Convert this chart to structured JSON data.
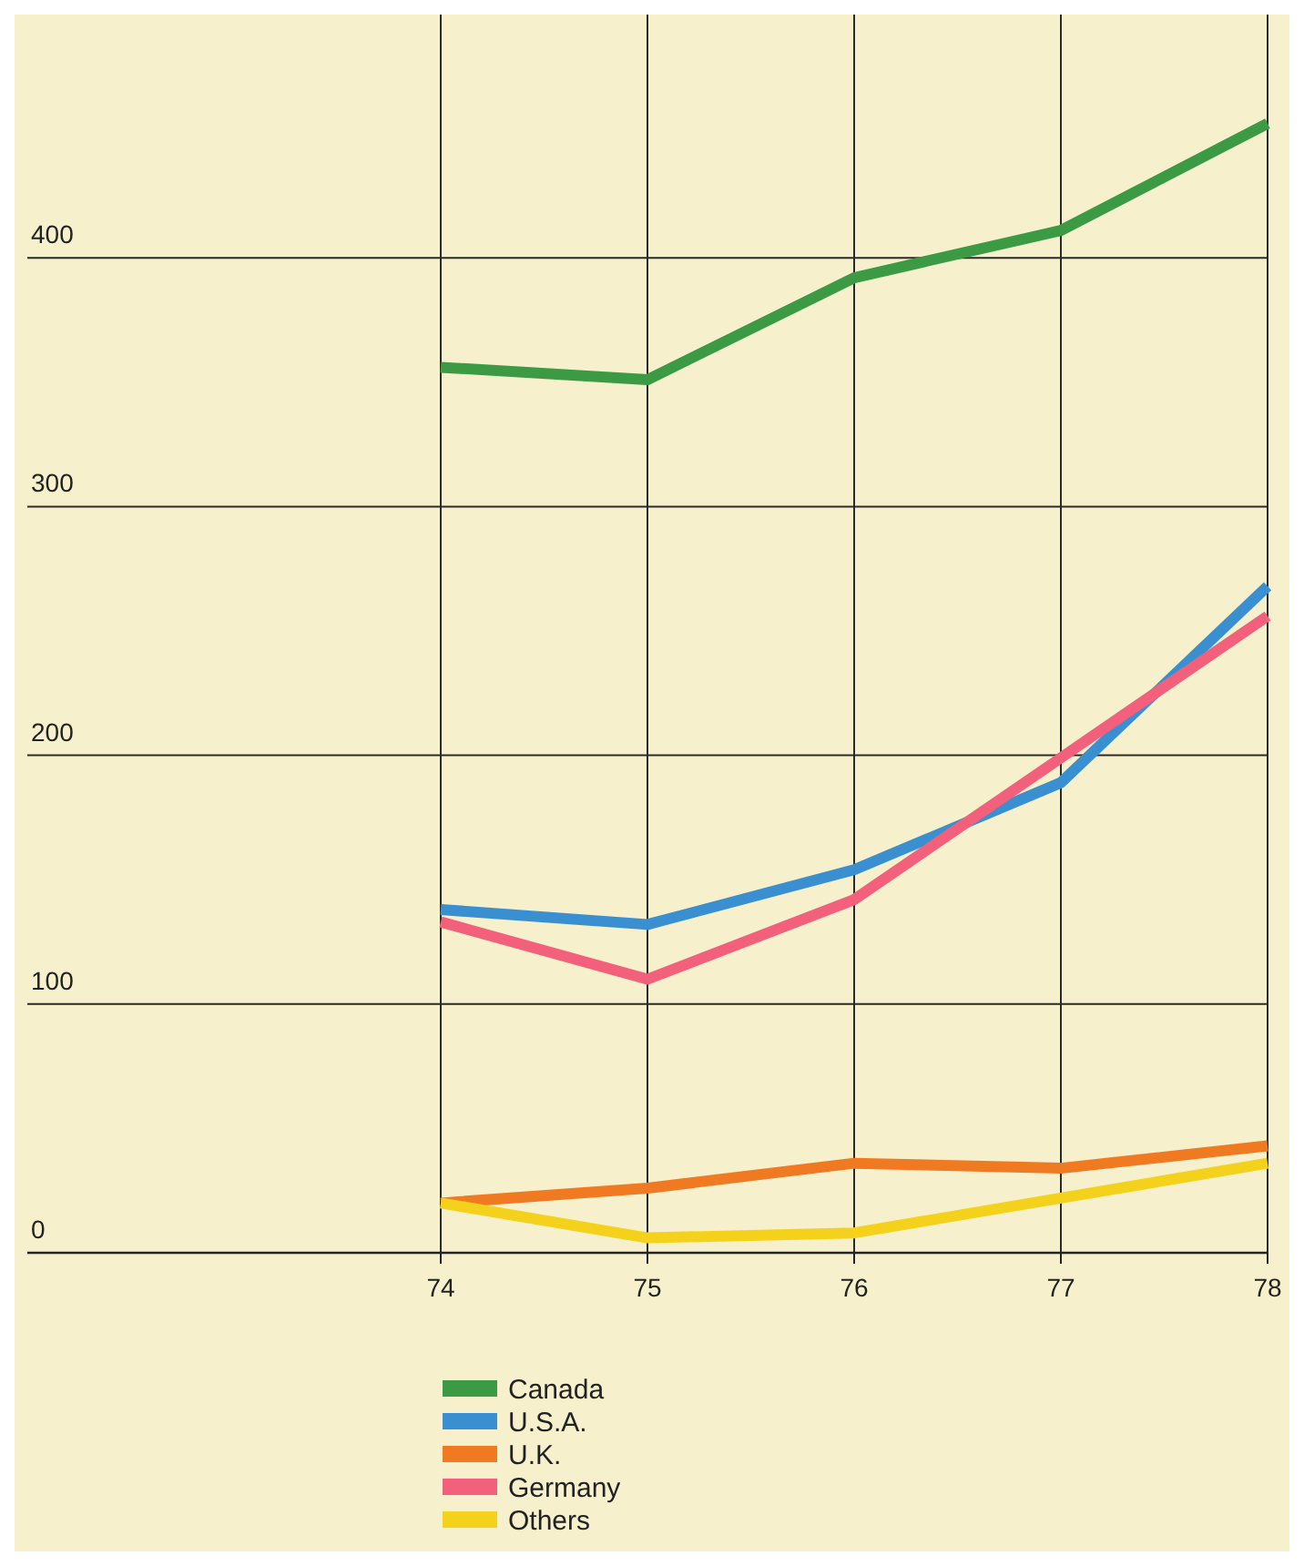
{
  "chart_data": {
    "type": "line",
    "x": [
      74,
      75,
      76,
      77,
      78
    ],
    "xlim": [
      72,
      78
    ],
    "xticks": [
      74,
      75,
      76,
      77,
      78
    ],
    "ylim": [
      0,
      500
    ],
    "yticks": [
      0,
      100,
      200,
      300,
      400
    ],
    "grid": true,
    "legend": "bottom",
    "marker": "none",
    "line_style": "solid",
    "series": [
      {
        "name": "Canada",
        "color": "#3c9a44",
        "values": [
          356,
          351,
          392,
          411,
          454
        ]
      },
      {
        "name": "U.S.A.",
        "color": "#3a8fd0",
        "values": [
          138,
          132,
          154,
          189,
          268
        ]
      },
      {
        "name": "U.K.",
        "color": "#f07a22",
        "values": [
          20,
          26,
          36,
          34,
          43
        ]
      },
      {
        "name": "Germany",
        "color": "#f2607c",
        "values": [
          133,
          110,
          142,
          199,
          256
        ]
      },
      {
        "name": "Others",
        "color": "#f4d21c",
        "values": [
          20,
          6,
          8,
          22,
          36
        ]
      }
    ]
  }
}
